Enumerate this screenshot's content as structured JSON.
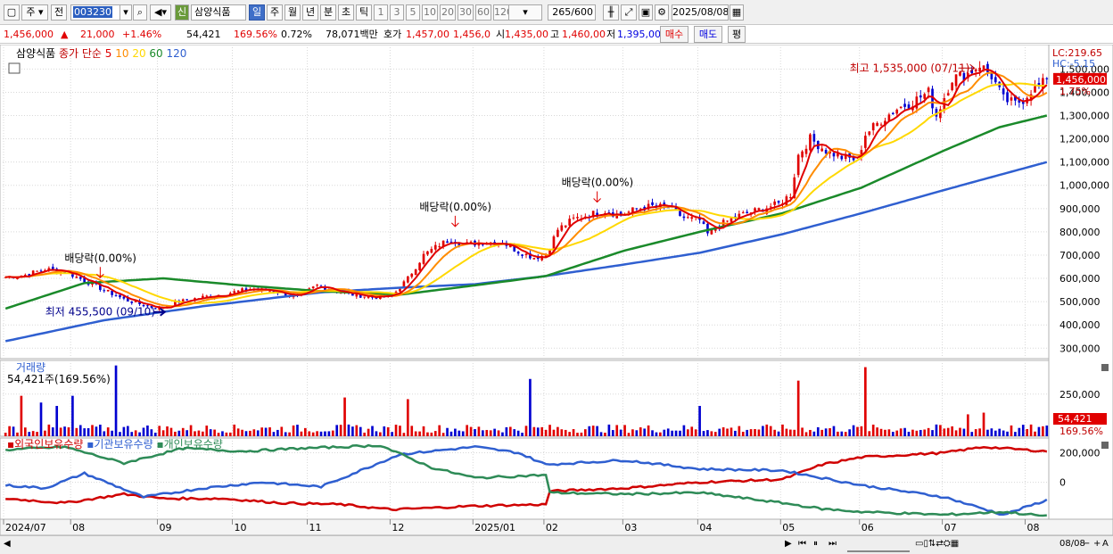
{
  "toolbar": {
    "market": "주",
    "type": "전",
    "code": "003230",
    "badge": "신",
    "name": "삼양식품",
    "periods": [
      "일",
      "주",
      "월",
      "년",
      "분",
      "초",
      "틱"
    ],
    "active_period": "일",
    "intervals": [
      "1",
      "3",
      "5",
      "10",
      "20",
      "30",
      "60",
      "120"
    ],
    "count": "265",
    "count_total": "/600",
    "date": "2025/08/08"
  },
  "quote": {
    "price": "1,456,000",
    "change": "21,000",
    "change_pct": "+1.46%",
    "volume": "54,421",
    "vol_ratio": "169.56%",
    "turnover_pct": "0.72%",
    "amount": "78,071백만",
    "ask_label": "호가",
    "ask1": "1,457,00",
    "bid1": "1,456,0",
    "open_label": "시",
    "open": "1,435,00",
    "high_label": "고",
    "high": "1,460,00",
    "low_label": "저",
    "low": "1,395,00",
    "buy": "매수",
    "sell": "매도",
    "avg": "평"
  },
  "colors": {
    "candle_up": "#e00000",
    "candle_down": "#0000d0",
    "ma5": "#e00000",
    "ma10": "#ff8c00",
    "ma20": "#ffd800",
    "ma60": "#1a8a2a",
    "ma120": "#2f5fd0",
    "foreign": "#d00000",
    "institution": "#2f5fd0",
    "individual": "#2e8b57"
  },
  "chart_data": [
    {
      "type": "candlestick",
      "legend_stock": "삼양식품",
      "legend_title": "종가 단순",
      "ma_periods": [
        "5",
        "10",
        "20",
        "60",
        "120"
      ],
      "y_ticks": [
        300000,
        400000,
        500000,
        600000,
        700000,
        800000,
        900000,
        1000000,
        1100000,
        1200000,
        1300000,
        1400000,
        1500000
      ],
      "y_tick_labels": [
        "300,000",
        "400,000",
        "500,000",
        "600,000",
        "700,000",
        "800,000",
        "900,000",
        "1,000,000",
        "1,100,000",
        "1,200,000",
        "1,300,000",
        "1,400,000",
        "1,500,000"
      ],
      "ylim": [
        255000,
        1605000
      ],
      "x_labels": [
        "2024/07",
        "08",
        "09",
        "10",
        "11",
        "12",
        "2025/01",
        "02",
        "03",
        "04",
        "05",
        "06",
        "07",
        "08"
      ],
      "x_tick_bar_index": [
        0,
        17,
        39,
        58,
        77,
        98,
        119,
        137,
        157,
        176,
        197,
        217,
        238,
        259
      ],
      "total_bars": 265,
      "close_anchors": [
        [
          0,
          605000
        ],
        [
          5,
          615000
        ],
        [
          10,
          640000
        ],
        [
          15,
          630000
        ],
        [
          20,
          590000
        ],
        [
          25,
          550000
        ],
        [
          30,
          510000
        ],
        [
          35,
          485000
        ],
        [
          39,
          470000
        ],
        [
          44,
          500000
        ],
        [
          50,
          520000
        ],
        [
          56,
          535000
        ],
        [
          62,
          555000
        ],
        [
          68,
          545000
        ],
        [
          74,
          520000
        ],
        [
          79,
          570000
        ],
        [
          84,
          545000
        ],
        [
          88,
          530000
        ],
        [
          93,
          520000
        ],
        [
          98,
          525000
        ],
        [
          102,
          600000
        ],
        [
          106,
          700000
        ],
        [
          110,
          745000
        ],
        [
          113,
          770000
        ],
        [
          116,
          745000
        ],
        [
          121,
          755000
        ],
        [
          126,
          755000
        ],
        [
          130,
          715000
        ],
        [
          134,
          690000
        ],
        [
          137,
          700000
        ],
        [
          140,
          810000
        ],
        [
          144,
          855000
        ],
        [
          148,
          875000
        ],
        [
          152,
          890000
        ],
        [
          156,
          870000
        ],
        [
          160,
          900000
        ],
        [
          164,
          910000
        ],
        [
          168,
          905000
        ],
        [
          172,
          860000
        ],
        [
          176,
          850000
        ],
        [
          178,
          790000
        ],
        [
          181,
          830000
        ],
        [
          186,
          870000
        ],
        [
          191,
          895000
        ],
        [
          196,
          920000
        ],
        [
          199,
          960000
        ],
        [
          201,
          1130000
        ],
        [
          204,
          1200000
        ],
        [
          208,
          1150000
        ],
        [
          212,
          1120000
        ],
        [
          216,
          1110000
        ],
        [
          218,
          1220000
        ],
        [
          222,
          1280000
        ],
        [
          226,
          1330000
        ],
        [
          230,
          1360000
        ],
        [
          234,
          1400000
        ],
        [
          236,
          1300000
        ],
        [
          240,
          1460000
        ],
        [
          244,
          1480000
        ],
        [
          247,
          1520000
        ],
        [
          250,
          1470000
        ],
        [
          253,
          1370000
        ],
        [
          256,
          1350000
        ],
        [
          258,
          1370000
        ],
        [
          260,
          1410000
        ],
        [
          262,
          1420000
        ],
        [
          264,
          1456000
        ]
      ],
      "ma60_anchors": [
        [
          0,
          470000
        ],
        [
          20,
          580000
        ],
        [
          40,
          600000
        ],
        [
          60,
          570000
        ],
        [
          80,
          545000
        ],
        [
          100,
          530000
        ],
        [
          119,
          570000
        ],
        [
          137,
          610000
        ],
        [
          157,
          720000
        ],
        [
          176,
          800000
        ],
        [
          197,
          880000
        ],
        [
          217,
          990000
        ],
        [
          238,
          1150000
        ],
        [
          252,
          1250000
        ],
        [
          264,
          1300000
        ]
      ],
      "ma120_anchors": [
        [
          0,
          330000
        ],
        [
          25,
          420000
        ],
        [
          50,
          480000
        ],
        [
          80,
          540000
        ],
        [
          100,
          560000
        ],
        [
          119,
          575000
        ],
        [
          137,
          610000
        ],
        [
          157,
          660000
        ],
        [
          176,
          710000
        ],
        [
          197,
          790000
        ],
        [
          217,
          880000
        ],
        [
          238,
          980000
        ],
        [
          264,
          1100000
        ]
      ],
      "annotations": [
        {
          "text": "최고 1,535,000 (07/11)",
          "bar": 247,
          "value": 1535000
        },
        {
          "text": "최저 455,500 (09/10)",
          "bar": 39,
          "value": 455500
        },
        {
          "text": "배당락(0.00%)",
          "bar": 24,
          "value": 580000
        },
        {
          "text": "배당락(0.00%)",
          "bar": 114,
          "value": 800000
        },
        {
          "text": "배당락(0.00%)",
          "bar": 150,
          "value": 905000
        }
      ],
      "price_badge": "1,456,000",
      "price_badge_pct": "1.75%",
      "lc_label": "LC:219.65",
      "hc_label": "HC:-5.15"
    },
    {
      "type": "bar",
      "title": "거래량",
      "current_label": "54,421주(169.56%)",
      "y_tick_label": "250,000",
      "value_badge": "54,421",
      "ratio_badge": "169.56%",
      "spikes": [
        {
          "bar": 4,
          "value": 240000
        },
        {
          "bar": 9,
          "value": 200000
        },
        {
          "bar": 13,
          "value": 180000
        },
        {
          "bar": 17,
          "value": 240000
        },
        {
          "bar": 28,
          "value": 420000
        },
        {
          "bar": 86,
          "value": 230000
        },
        {
          "bar": 102,
          "value": 220000
        },
        {
          "bar": 133,
          "value": 340000
        },
        {
          "bar": 176,
          "value": 180000
        },
        {
          "bar": 201,
          "value": 330000
        },
        {
          "bar": 218,
          "value": 410000
        },
        {
          "bar": 244,
          "value": 130000
        },
        {
          "bar": 248,
          "value": 140000
        }
      ],
      "ylim": [
        0,
        450000
      ]
    },
    {
      "type": "line",
      "series_names": [
        "외국인보유수량",
        "기관보유수량",
        "개인보유수량"
      ],
      "y_tick_labels": [
        "200,000",
        "0"
      ],
      "y_ticks": [
        200000,
        0
      ],
      "ylim": [
        -250000,
        300000
      ],
      "series": [
        {
          "name": "외국인보유수량",
          "anchors": [
            [
              0,
              -110000
            ],
            [
              15,
              -140000
            ],
            [
              30,
              -80000
            ],
            [
              40,
              -110000
            ],
            [
              55,
              -110000
            ],
            [
              70,
              -140000
            ],
            [
              85,
              -150000
            ],
            [
              98,
              -185000
            ],
            [
              119,
              -160000
            ],
            [
              137,
              -150000
            ],
            [
              138,
              -60000
            ],
            [
              157,
              -40000
            ],
            [
              176,
              0
            ],
            [
              197,
              20000
            ],
            [
              207,
              120000
            ],
            [
              217,
              170000
            ],
            [
              238,
              200000
            ],
            [
              248,
              240000
            ],
            [
              264,
              210000
            ]
          ]
        },
        {
          "name": "기관보유수량",
          "anchors": [
            [
              0,
              -20000
            ],
            [
              10,
              -40000
            ],
            [
              20,
              60000
            ],
            [
              35,
              -100000
            ],
            [
              50,
              -40000
            ],
            [
              65,
              0
            ],
            [
              80,
              -30000
            ],
            [
              100,
              190000
            ],
            [
              119,
              240000
            ],
            [
              130,
              200000
            ],
            [
              137,
              120000
            ],
            [
              157,
              150000
            ],
            [
              176,
              90000
            ],
            [
              197,
              80000
            ],
            [
              217,
              -20000
            ],
            [
              238,
              -100000
            ],
            [
              253,
              -220000
            ],
            [
              264,
              -120000
            ]
          ]
        },
        {
          "name": "개인보유수량",
          "anchors": [
            [
              0,
              220000
            ],
            [
              15,
              240000
            ],
            [
              30,
              130000
            ],
            [
              45,
              230000
            ],
            [
              60,
              210000
            ],
            [
              75,
              230000
            ],
            [
              95,
              250000
            ],
            [
              108,
              100000
            ],
            [
              119,
              30000
            ],
            [
              137,
              50000
            ],
            [
              138,
              -70000
            ],
            [
              157,
              -80000
            ],
            [
              176,
              -70000
            ],
            [
              197,
              -140000
            ],
            [
              207,
              -180000
            ],
            [
              217,
              -200000
            ],
            [
              238,
              -220000
            ],
            [
              253,
              -200000
            ],
            [
              264,
              -230000
            ]
          ]
        }
      ]
    }
  ],
  "scroll": {
    "right_date": "08/08"
  }
}
